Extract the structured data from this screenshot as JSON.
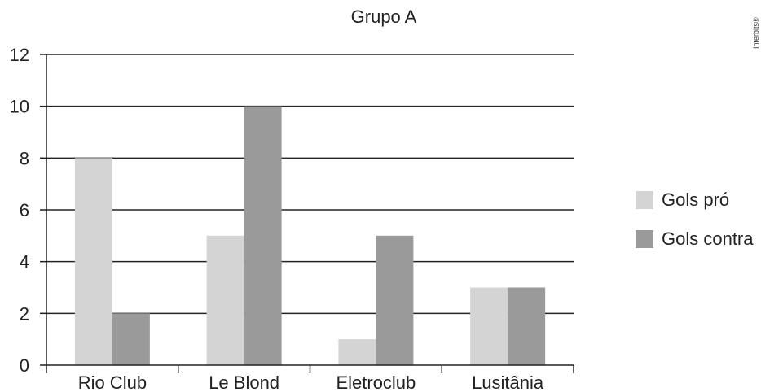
{
  "watermark": "Interbits®",
  "chart_data": {
    "type": "bar",
    "title": "Grupo A",
    "xlabel": "",
    "ylabel": "",
    "categories": [
      "Rio Club",
      "Le Blond",
      "Eletroclub",
      "Lusitânia"
    ],
    "series": [
      {
        "name": "Gols pró",
        "values": [
          8,
          5,
          1,
          3
        ],
        "color": "#d4d4d4"
      },
      {
        "name": "Gols contra",
        "values": [
          2,
          10,
          5,
          3
        ],
        "color": "#9a9a9a"
      }
    ],
    "ylim": [
      0,
      12
    ],
    "yticks": [
      0,
      2,
      4,
      6,
      8,
      10,
      12
    ],
    "grid": true,
    "legend_position": "right"
  }
}
